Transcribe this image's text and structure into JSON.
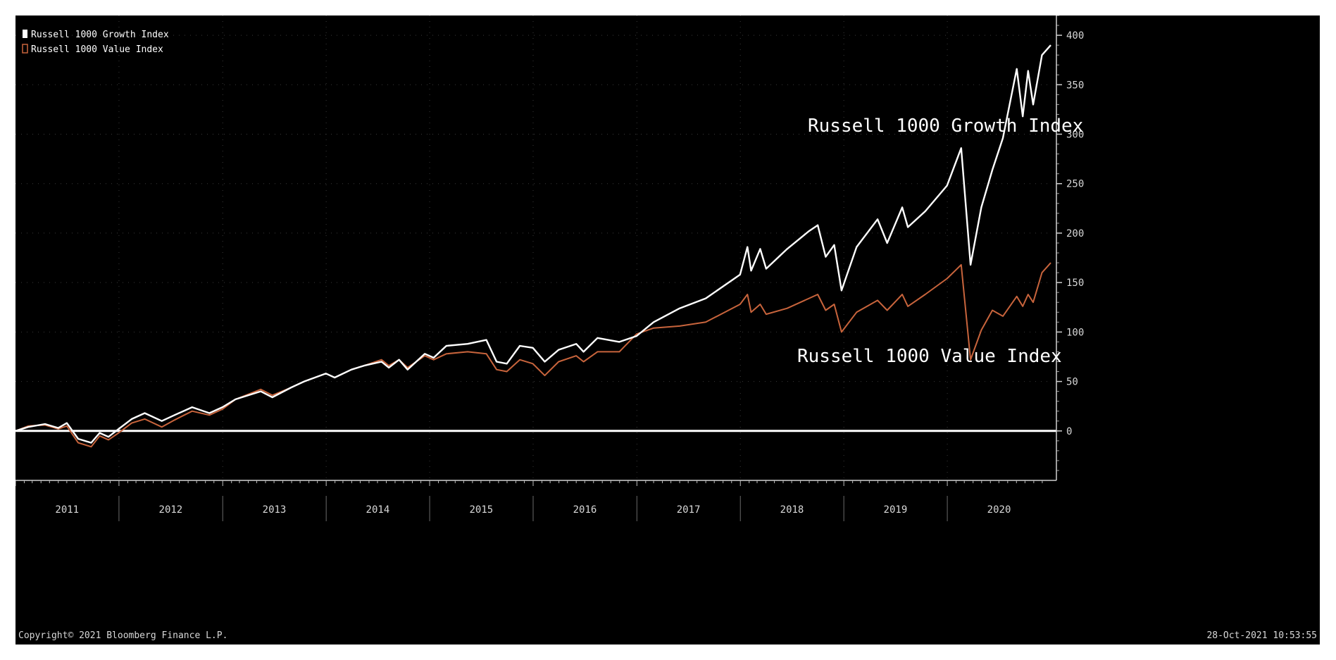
{
  "chart_data": {
    "type": "line",
    "title": "",
    "xlabel": "",
    "ylabel": "",
    "x_range": [
      "2011-01-01",
      "2020-12-31"
    ],
    "ylim": [
      -50,
      420
    ],
    "y_ticks": [
      0,
      50,
      100,
      150,
      200,
      250,
      300,
      350,
      400
    ],
    "x_tick_labels": [
      "2011",
      "2012",
      "2013",
      "2014",
      "2015",
      "2016",
      "2017",
      "2018",
      "2019",
      "2020"
    ],
    "grid": true,
    "legend_position": "top-left",
    "legend": [
      {
        "label": "Russell 1000 Growth Index",
        "color": "#ffffff"
      },
      {
        "label": "Russell 1000 Value Index",
        "color": "#c8643c"
      }
    ],
    "annotations": [
      {
        "text": "Russell 1000 Growth Index",
        "series": "Russell 1000 Growth Index"
      },
      {
        "text": "Russell 1000 Value Index",
        "series": "Russell 1000 Value Index"
      }
    ],
    "series": [
      {
        "name": "Russell 1000 Growth Index",
        "color": "#ffffff",
        "points": [
          [
            "2011-01-01",
            0
          ],
          [
            "2011-02-15",
            4
          ],
          [
            "2011-04-15",
            7
          ],
          [
            "2011-06-01",
            3
          ],
          [
            "2011-07-01",
            8
          ],
          [
            "2011-08-10",
            -8
          ],
          [
            "2011-09-25",
            -12
          ],
          [
            "2011-10-25",
            -2
          ],
          [
            "2011-11-25",
            -6
          ],
          [
            "2011-12-31",
            2
          ],
          [
            "2012-02-15",
            12
          ],
          [
            "2012-04-01",
            18
          ],
          [
            "2012-05-31",
            10
          ],
          [
            "2012-07-15",
            16
          ],
          [
            "2012-09-15",
            24
          ],
          [
            "2012-11-15",
            18
          ],
          [
            "2012-12-31",
            24
          ],
          [
            "2013-02-15",
            32
          ],
          [
            "2013-05-15",
            40
          ],
          [
            "2013-06-25",
            34
          ],
          [
            "2013-08-31",
            44
          ],
          [
            "2013-10-15",
            50
          ],
          [
            "2013-12-31",
            58
          ],
          [
            "2014-01-31",
            54
          ],
          [
            "2014-03-31",
            62
          ],
          [
            "2014-05-15",
            66
          ],
          [
            "2014-07-15",
            70
          ],
          [
            "2014-08-10",
            64
          ],
          [
            "2014-09-15",
            72
          ],
          [
            "2014-10-15",
            62
          ],
          [
            "2014-12-15",
            78
          ],
          [
            "2015-01-15",
            74
          ],
          [
            "2015-03-01",
            86
          ],
          [
            "2015-05-15",
            88
          ],
          [
            "2015-07-20",
            92
          ],
          [
            "2015-08-25",
            70
          ],
          [
            "2015-09-30",
            68
          ],
          [
            "2015-11-15",
            86
          ],
          [
            "2015-12-31",
            84
          ],
          [
            "2016-02-11",
            70
          ],
          [
            "2016-03-31",
            82
          ],
          [
            "2016-06-01",
            88
          ],
          [
            "2016-06-27",
            80
          ],
          [
            "2016-08-15",
            94
          ],
          [
            "2016-10-31",
            90
          ],
          [
            "2016-12-31",
            96
          ],
          [
            "2017-03-01",
            110
          ],
          [
            "2017-06-01",
            124
          ],
          [
            "2017-09-01",
            134
          ],
          [
            "2017-12-31",
            158
          ],
          [
            "2018-01-26",
            186
          ],
          [
            "2018-02-08",
            162
          ],
          [
            "2018-03-12",
            184
          ],
          [
            "2018-04-02",
            164
          ],
          [
            "2018-06-15",
            184
          ],
          [
            "2018-08-31",
            202
          ],
          [
            "2018-10-01",
            208
          ],
          [
            "2018-10-29",
            176
          ],
          [
            "2018-11-28",
            188
          ],
          [
            "2018-12-24",
            142
          ],
          [
            "2019-02-15",
            186
          ],
          [
            "2019-04-30",
            214
          ],
          [
            "2019-06-03",
            190
          ],
          [
            "2019-07-26",
            226
          ],
          [
            "2019-08-15",
            206
          ],
          [
            "2019-10-15",
            222
          ],
          [
            "2019-12-31",
            248
          ],
          [
            "2020-02-19",
            286
          ],
          [
            "2020-03-23",
            168
          ],
          [
            "2020-04-30",
            226
          ],
          [
            "2020-06-08",
            264
          ],
          [
            "2020-07-15",
            296
          ],
          [
            "2020-09-02",
            366
          ],
          [
            "2020-09-23",
            318
          ],
          [
            "2020-10-12",
            364
          ],
          [
            "2020-10-30",
            330
          ],
          [
            "2020-11-30",
            380
          ],
          [
            "2020-12-31",
            390
          ]
        ]
      },
      {
        "name": "Russell 1000 Value Index",
        "color": "#c8643c",
        "points": [
          [
            "2011-01-01",
            0
          ],
          [
            "2011-02-15",
            5
          ],
          [
            "2011-04-15",
            6
          ],
          [
            "2011-06-01",
            2
          ],
          [
            "2011-07-01",
            5
          ],
          [
            "2011-08-10",
            -12
          ],
          [
            "2011-09-25",
            -16
          ],
          [
            "2011-10-25",
            -5
          ],
          [
            "2011-11-25",
            -9
          ],
          [
            "2011-12-31",
            -2
          ],
          [
            "2012-02-15",
            8
          ],
          [
            "2012-04-01",
            12
          ],
          [
            "2012-05-31",
            4
          ],
          [
            "2012-07-15",
            11
          ],
          [
            "2012-09-15",
            20
          ],
          [
            "2012-11-15",
            16
          ],
          [
            "2012-12-31",
            22
          ],
          [
            "2013-02-15",
            32
          ],
          [
            "2013-05-15",
            42
          ],
          [
            "2013-06-25",
            36
          ],
          [
            "2013-08-31",
            44
          ],
          [
            "2013-10-15",
            50
          ],
          [
            "2013-12-31",
            58
          ],
          [
            "2014-01-31",
            54
          ],
          [
            "2014-03-31",
            62
          ],
          [
            "2014-05-15",
            66
          ],
          [
            "2014-07-15",
            72
          ],
          [
            "2014-08-10",
            66
          ],
          [
            "2014-09-15",
            72
          ],
          [
            "2014-10-15",
            64
          ],
          [
            "2014-12-15",
            76
          ],
          [
            "2015-01-15",
            72
          ],
          [
            "2015-03-01",
            78
          ],
          [
            "2015-05-15",
            80
          ],
          [
            "2015-07-20",
            78
          ],
          [
            "2015-08-25",
            62
          ],
          [
            "2015-09-30",
            60
          ],
          [
            "2015-11-15",
            72
          ],
          [
            "2015-12-31",
            68
          ],
          [
            "2016-02-11",
            56
          ],
          [
            "2016-03-31",
            70
          ],
          [
            "2016-06-01",
            76
          ],
          [
            "2016-06-27",
            70
          ],
          [
            "2016-08-15",
            80
          ],
          [
            "2016-10-31",
            80
          ],
          [
            "2016-12-31",
            98
          ],
          [
            "2017-03-01",
            104
          ],
          [
            "2017-06-01",
            106
          ],
          [
            "2017-09-01",
            110
          ],
          [
            "2017-12-31",
            128
          ],
          [
            "2018-01-26",
            138
          ],
          [
            "2018-02-08",
            120
          ],
          [
            "2018-03-12",
            128
          ],
          [
            "2018-04-02",
            118
          ],
          [
            "2018-06-15",
            124
          ],
          [
            "2018-08-31",
            134
          ],
          [
            "2018-10-01",
            138
          ],
          [
            "2018-10-29",
            122
          ],
          [
            "2018-11-28",
            128
          ],
          [
            "2018-12-24",
            100
          ],
          [
            "2019-02-15",
            120
          ],
          [
            "2019-04-30",
            132
          ],
          [
            "2019-06-03",
            122
          ],
          [
            "2019-07-26",
            138
          ],
          [
            "2019-08-15",
            126
          ],
          [
            "2019-10-15",
            138
          ],
          [
            "2019-12-31",
            154
          ],
          [
            "2020-02-19",
            168
          ],
          [
            "2020-03-23",
            72
          ],
          [
            "2020-04-30",
            102
          ],
          [
            "2020-06-08",
            122
          ],
          [
            "2020-07-15",
            116
          ],
          [
            "2020-09-02",
            136
          ],
          [
            "2020-09-23",
            126
          ],
          [
            "2020-10-12",
            138
          ],
          [
            "2020-10-30",
            130
          ],
          [
            "2020-11-30",
            160
          ],
          [
            "2020-12-31",
            170
          ]
        ]
      }
    ]
  },
  "footer": {
    "copyright": "Copyright© 2021 Bloomberg Finance L.P.",
    "timestamp": "28-Oct-2021 10:53:55"
  }
}
